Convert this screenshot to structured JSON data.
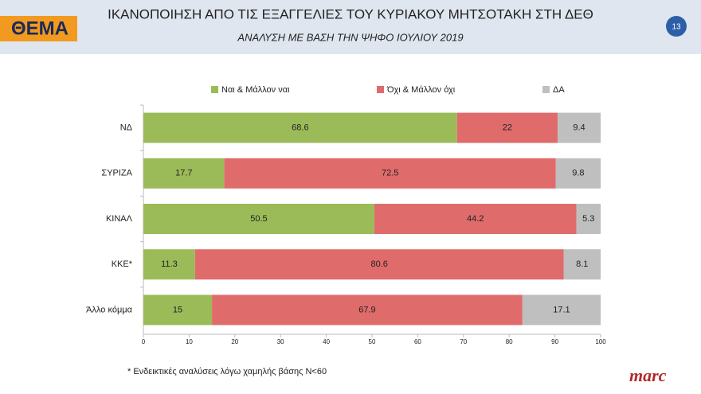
{
  "logo": "ΘΕΜΑ",
  "page_number": "13",
  "footnote": "* Ενδεικτικές αναλύσεις λόγω χαμηλής βάσης Ν<60",
  "brand": "marc",
  "chart_data": {
    "type": "stacked_bar",
    "title": "ΙΚΑΝΟΠΟΙΗΣΗ ΑΠΟ ΤΙΣ ΕΞΑΓΓΕΛΙΕΣ ΤΟΥ ΚΥΡΙΑΚΟΥ ΜΗΤΣΟΤΑΚΗ ΣΤΗ ΔΕΘ",
    "subtitle": "ΑΝΑΛΥΣΗ ΜΕ ΒΑΣΗ ΤΗΝ ΨΗΦΟ ΙΟΥΛΙΟΥ 2019",
    "categories": [
      "ΝΔ",
      "ΣΥΡΙΖΑ",
      "ΚΙΝΑΛ",
      "ΚΚΕ*",
      "Άλλο κόμμα"
    ],
    "series": [
      {
        "name": "Ναι & Μάλλον ναι",
        "color": "#9bbb59",
        "values": [
          68.6,
          17.7,
          50.5,
          11.3,
          15
        ]
      },
      {
        "name": "Όχι & Μάλλον όχι",
        "color": "#e06b6b",
        "values": [
          22,
          72.5,
          44.2,
          80.6,
          67.9
        ]
      },
      {
        "name": "ΔΑ",
        "color": "#bfbfbf",
        "values": [
          9.4,
          9.8,
          5.3,
          8.1,
          17.1
        ]
      }
    ],
    "xlim": [
      0,
      100
    ],
    "xticks": [
      0,
      10,
      20,
      30,
      40,
      50,
      60,
      70,
      80,
      90,
      100
    ]
  }
}
